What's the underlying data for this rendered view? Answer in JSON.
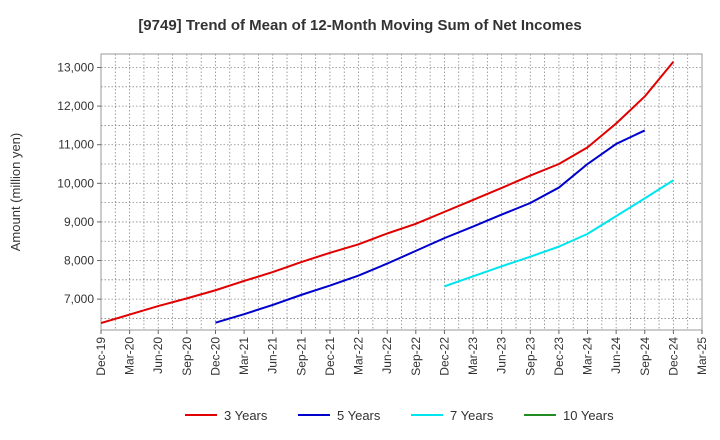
{
  "chart_data": {
    "type": "line",
    "title": "[9749]  Trend of Mean of 12-Month Moving Sum of Net Incomes",
    "xlabel": "",
    "ylabel": "Amount (million yen)",
    "ylim": [
      6200,
      13350
    ],
    "yticks": [
      7000,
      8000,
      9000,
      10000,
      11000,
      12000,
      13000
    ],
    "ytick_labels": [
      "7,000",
      "8,000",
      "9,000",
      "10,000",
      "11,000",
      "12,000",
      "13,000"
    ],
    "x_categories": [
      "Dec-19",
      "Mar-20",
      "Jun-20",
      "Sep-20",
      "Dec-20",
      "Mar-21",
      "Jun-21",
      "Sep-21",
      "Dec-21",
      "Mar-22",
      "Jun-22",
      "Sep-22",
      "Dec-22",
      "Mar-23",
      "Jun-23",
      "Sep-23",
      "Dec-23",
      "Mar-24",
      "Jun-24",
      "Sep-24",
      "Dec-24",
      "Mar-25"
    ],
    "grid": true,
    "legend_position": "bottom",
    "series": [
      {
        "name": "3 Years",
        "color": "#e00000",
        "start_index": 0,
        "values": [
          6380,
          6600,
          6820,
          7020,
          7230,
          7470,
          7700,
          7960,
          8200,
          8420,
          8700,
          8950,
          9260,
          9570,
          9880,
          10200,
          10500,
          10930,
          11550,
          12250,
          13150
        ]
      },
      {
        "name": "5 Years",
        "color": "#0000cc",
        "start_index": 4,
        "values": [
          6390,
          6610,
          6850,
          7110,
          7350,
          7610,
          7920,
          8250,
          8580,
          8880,
          9190,
          9490,
          9890,
          10500,
          11020,
          11370
        ]
      },
      {
        "name": "7 Years",
        "color": "#00e5ee",
        "start_index": 12,
        "values": [
          7330,
          7590,
          7850,
          8100,
          8360,
          8690,
          9150,
          9610,
          10080
        ]
      },
      {
        "name": "10 Years",
        "color": "#228b22",
        "start_index": 0,
        "values": []
      }
    ]
  }
}
